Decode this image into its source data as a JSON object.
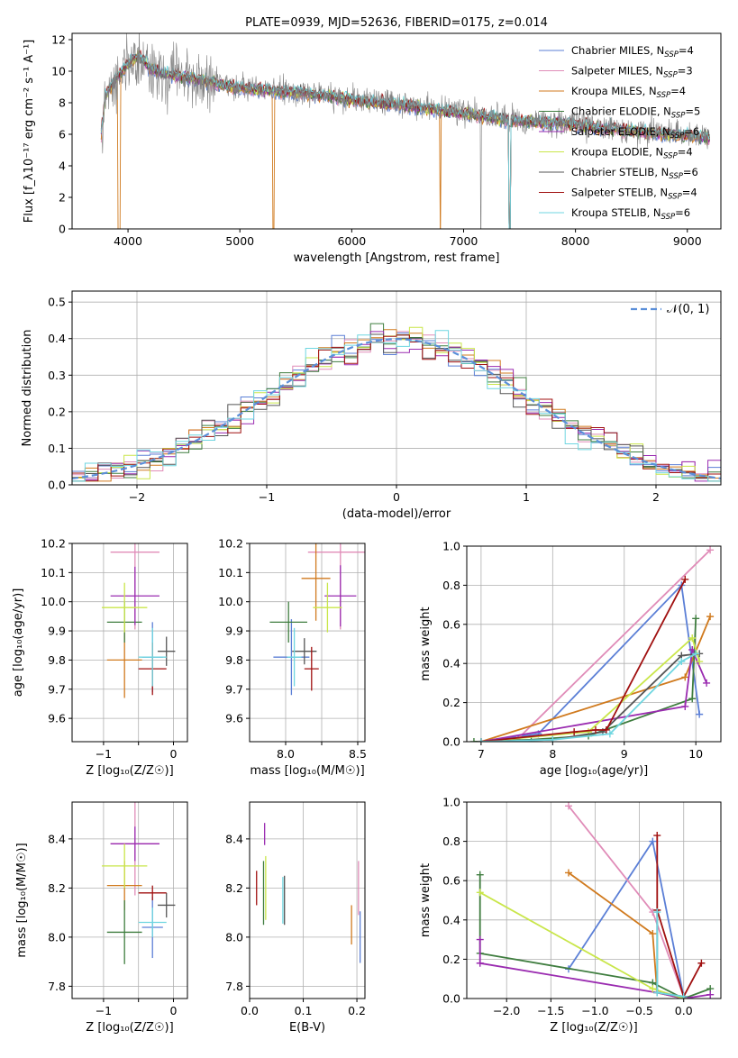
{
  "colors": {
    "Chabrier MILES": "#5b7fd6",
    "Salpeter MILES": "#e08cb8",
    "Kroupa MILES": "#d07a1e",
    "Chabrier ELODIE": "#3f7d3f",
    "Salpeter ELODIE": "#9a2bb0",
    "Kroupa ELODIE": "#c9e64a",
    "Chabrier STELIB": "#555555",
    "Salpeter STELIB": "#a01010",
    "Kroupa STELIB": "#6fd6e0"
  },
  "chart_data": [
    {
      "id": "spectrum",
      "type": "line",
      "title": "PLATE=0939, MJD=52636, FIBERID=0175, z=0.014",
      "xlabel": "wavelength [Angstrom, rest frame]",
      "ylabel": "Flux [f_λ10⁻¹⁷ erg cm⁻² s⁻¹ A⁻¹]",
      "xlim": [
        3500,
        9300
      ],
      "ylim": [
        0,
        12.4
      ],
      "xticks": [
        4000,
        5000,
        6000,
        7000,
        8000,
        9000
      ],
      "yticks": [
        0,
        2,
        4,
        6,
        8,
        10,
        12
      ],
      "grid": false,
      "legend_position": "upper-right",
      "legend": [
        {
          "model": "Chabrier MILES",
          "label": "Chabrier MILES, N",
          "sub": "SSP",
          "tail": "=4"
        },
        {
          "model": "Salpeter MILES",
          "label": "Salpeter MILES, N",
          "sub": "SSP",
          "tail": "=3"
        },
        {
          "model": "Kroupa MILES",
          "label": "Kroupa MILES, N",
          "sub": "SSP",
          "tail": "=4"
        },
        {
          "model": "Chabrier ELODIE",
          "label": "Chabrier ELODIE, N",
          "sub": "SSP",
          "tail": "=5"
        },
        {
          "model": "Salpeter ELODIE",
          "label": "Salpeter ELODIE, N",
          "sub": "SSP",
          "tail": "=6"
        },
        {
          "model": "Kroupa ELODIE",
          "label": "Kroupa ELODIE, N",
          "sub": "SSP",
          "tail": "=4"
        },
        {
          "model": "Chabrier STELIB",
          "label": "Chabrier STELIB, N",
          "sub": "SSP",
          "tail": "=6"
        },
        {
          "model": "Salpeter STELIB",
          "label": "Salpeter STELIB, N",
          "sub": "SSP",
          "tail": "=4"
        },
        {
          "model": "Kroupa STELIB",
          "label": "Kroupa STELIB, N",
          "sub": "SSP",
          "tail": "=6"
        }
      ],
      "data_x": [
        3760,
        3800,
        3900,
        4000,
        4100,
        4200,
        4300,
        4400,
        4500,
        4600,
        4700,
        4800,
        4900,
        5000,
        5200,
        5400,
        5600,
        5800,
        6000,
        6200,
        6400,
        6600,
        6800,
        7000,
        7200,
        7400,
        7600,
        7800,
        8000,
        8200,
        8400,
        8600,
        8800,
        9000,
        9200
      ],
      "data_y": [
        5.0,
        8.2,
        9.4,
        10.3,
        10.8,
        10.2,
        9.9,
        9.8,
        9.7,
        9.6,
        9.5,
        9.3,
        9.2,
        9.0,
        8.9,
        8.8,
        8.6,
        8.5,
        8.3,
        8.1,
        8.0,
        7.8,
        7.6,
        7.4,
        7.2,
        7.0,
        6.9,
        6.8,
        6.7,
        6.5,
        6.4,
        6.2,
        6.1,
        6.0,
        5.9
      ],
      "models_x": [
        3760,
        3800,
        3900,
        4000,
        4100,
        4200,
        4300,
        4400,
        4500,
        4600,
        4700,
        4800,
        4900,
        5000,
        5200,
        5400,
        5600,
        5800,
        6000,
        6200,
        6400,
        6600,
        6800,
        7000,
        7200,
        7400,
        7600,
        7800,
        8000,
        8200,
        8400,
        8600,
        8800,
        9000,
        9200
      ],
      "models_y": [
        6.0,
        8.5,
        9.6,
        10.5,
        11.0,
        10.2,
        9.9,
        9.8,
        9.6,
        9.5,
        9.4,
        9.2,
        9.0,
        8.9,
        8.8,
        8.7,
        8.6,
        8.4,
        8.2,
        8.0,
        7.9,
        7.7,
        7.5,
        7.3,
        7.1,
        6.9,
        6.8,
        6.7,
        6.6,
        6.4,
        6.3,
        6.1,
        6.0,
        5.9,
        5.8
      ]
    },
    {
      "id": "residuals",
      "type": "line",
      "xlabel": "(data-model)/error",
      "ylabel": "Normed distribution",
      "xlim": [
        -2.5,
        2.5
      ],
      "ylim": [
        0,
        0.53
      ],
      "xticks": [
        -2,
        -1,
        0,
        1,
        2
      ],
      "yticks": [
        0.0,
        0.1,
        0.2,
        0.3,
        0.4,
        0.5
      ],
      "grid": true,
      "legend_position": "upper-right",
      "legend": [
        {
          "label": "𝒩(0, 1)",
          "style": "dashed"
        }
      ],
      "normal_curve": {
        "mean": 0,
        "sigma": 1
      }
    },
    {
      "id": "age_vs_Z",
      "type": "scatter",
      "xlabel": "Z [log₁₀(Z/Z☉)]",
      "ylabel": "age  [log₁₀(age/yr)]",
      "xlim": [
        -1.45,
        0.2
      ],
      "ylim": [
        9.52,
        10.2
      ],
      "xticks": [
        -1,
        -0.5,
        0
      ],
      "xticklabels": [
        "−1",
        "",
        "0"
      ],
      "yticks": [
        9.6,
        9.7,
        9.8,
        9.9,
        10.0,
        10.1,
        10.2
      ],
      "grid": true,
      "points": [
        {
          "model": "Chabrier MILES",
          "x": -0.3,
          "xerr": 0.3,
          "y": 9.81,
          "yerr": 0.24
        },
        {
          "model": "Salpeter MILES",
          "x": -0.55,
          "xerr": 0.7,
          "y": 10.17,
          "yerr": 0.53
        },
        {
          "model": "Kroupa MILES",
          "x": -0.7,
          "xerr": 0.5,
          "y": 9.8,
          "yerr": 0.26
        },
        {
          "model": "Chabrier ELODIE",
          "x": -0.7,
          "xerr": 0.5,
          "y": 9.93,
          "yerr": 0.14
        },
        {
          "model": "Salpeter ELODIE",
          "x": -0.55,
          "xerr": 0.7,
          "y": 10.02,
          "yerr": 0.2
        },
        {
          "model": "Kroupa ELODIE",
          "x": -0.7,
          "xerr": 0.65,
          "y": 9.98,
          "yerr": 0.17
        },
        {
          "model": "Chabrier STELIB",
          "x": -0.1,
          "xerr": 0.25,
          "y": 9.83,
          "yerr": 0.1
        },
        {
          "model": "Salpeter STELIB",
          "x": -0.3,
          "xerr": 0.4,
          "y": 9.77,
          "yerr": 0.18
        },
        {
          "model": "Kroupa STELIB",
          "x": -0.3,
          "xerr": 0.4,
          "y": 9.81,
          "yerr": 0.2
        }
      ]
    },
    {
      "id": "age_vs_mass",
      "type": "scatter",
      "xlabel": "mass [log₁₀(M/M☉)]",
      "ylabel": "",
      "xlim": [
        7.75,
        8.55
      ],
      "ylim": [
        9.52,
        10.2
      ],
      "xticks": [
        8.0,
        8.25,
        8.5
      ],
      "xticklabels": [
        "8.0",
        "",
        "8.5"
      ],
      "yticks": [
        9.6,
        9.7,
        9.8,
        9.9,
        10.0,
        10.1,
        10.2
      ],
      "grid": true,
      "points": [
        {
          "model": "Chabrier MILES",
          "x": 8.04,
          "xerr": 0.25,
          "y": 9.81,
          "yerr": 0.26
        },
        {
          "model": "Salpeter MILES",
          "x": 8.38,
          "xerr": 0.45,
          "y": 10.17,
          "yerr": 0.53
        },
        {
          "model": "Kroupa MILES",
          "x": 8.21,
          "xerr": 0.2,
          "y": 10.08,
          "yerr": 0.29
        },
        {
          "model": "Chabrier ELODIE",
          "x": 8.02,
          "xerr": 0.26,
          "y": 9.93,
          "yerr": 0.14
        },
        {
          "model": "Salpeter ELODIE",
          "x": 8.38,
          "xerr": 0.22,
          "y": 10.02,
          "yerr": 0.21
        },
        {
          "model": "Kroupa ELODIE",
          "x": 8.29,
          "xerr": 0.2,
          "y": 9.98,
          "yerr": 0.17
        },
        {
          "model": "Chabrier STELIB",
          "x": 8.13,
          "xerr": 0.17,
          "y": 9.83,
          "yerr": 0.09
        },
        {
          "model": "Salpeter STELIB",
          "x": 8.18,
          "xerr": 0.1,
          "y": 9.77,
          "yerr": 0.15
        },
        {
          "model": "Kroupa STELIB",
          "x": 8.06,
          "xerr": 0.1,
          "y": 9.81,
          "yerr": 0.2
        }
      ]
    },
    {
      "id": "massweight_vs_age",
      "type": "line",
      "xlabel": "age  [log₁₀(age/yr)]",
      "ylabel": "mass weight",
      "xlim": [
        6.8,
        10.35
      ],
      "ylim": [
        0,
        1.0
      ],
      "xticks": [
        7,
        8,
        9,
        10
      ],
      "yticks": [
        0.0,
        0.2,
        0.4,
        0.6,
        0.8,
        1.0
      ],
      "grid": true,
      "series": [
        {
          "model": "Chabrier MILES",
          "x": [
            7.0,
            7.8,
            9.8,
            10.05
          ],
          "y": [
            0.0,
            0.04,
            0.8,
            0.14
          ]
        },
        {
          "model": "Salpeter MILES",
          "x": [
            7.5,
            10.2
          ],
          "y": [
            0.01,
            0.98
          ]
        },
        {
          "model": "Kroupa MILES",
          "x": [
            7.0,
            9.85,
            10.2
          ],
          "y": [
            0.0,
            0.33,
            0.64
          ]
        },
        {
          "model": "Chabrier ELODIE",
          "x": [
            6.9,
            7.7,
            8.5,
            9.95,
            10.0
          ],
          "y": [
            0.0,
            0.01,
            0.03,
            0.22,
            0.63
          ]
        },
        {
          "model": "Salpeter ELODIE",
          "x": [
            7.0,
            9.85,
            9.95,
            10.15
          ],
          "y": [
            0.0,
            0.18,
            0.47,
            0.3
          ]
        },
        {
          "model": "Kroupa ELODIE",
          "x": [
            7.0,
            8.5,
            9.95,
            10.05
          ],
          "y": [
            0.0,
            0.05,
            0.53,
            0.41
          ]
        },
        {
          "model": "Chabrier STELIB",
          "x": [
            7.0,
            8.0,
            8.7,
            9.8,
            10.05
          ],
          "y": [
            0.0,
            0.01,
            0.05,
            0.44,
            0.45
          ]
        },
        {
          "model": "Salpeter STELIB",
          "x": [
            7.0,
            8.3,
            8.6,
            8.75,
            9.85
          ],
          "y": [
            0.0,
            0.05,
            0.06,
            0.06,
            0.83
          ]
        },
        {
          "model": "Kroupa STELIB",
          "x": [
            7.0,
            8.0,
            8.8,
            9.8,
            10.0
          ],
          "y": [
            0.0,
            0.01,
            0.04,
            0.41,
            0.45
          ]
        }
      ]
    },
    {
      "id": "mass_vs_Z",
      "type": "scatter",
      "xlabel": "Z [log₁₀(Z/Z☉)]",
      "ylabel": "mass [log₁₀(M/M☉)]",
      "xlim": [
        -1.45,
        0.2
      ],
      "ylim": [
        7.75,
        8.55
      ],
      "xticks": [
        -1,
        -0.5,
        0
      ],
      "xticklabels": [
        "−1",
        "",
        "0"
      ],
      "yticks": [
        7.8,
        8.0,
        8.2,
        8.4
      ],
      "grid": true,
      "points": [
        {
          "model": "Chabrier MILES",
          "x": -0.3,
          "xerr": 0.3,
          "y": 8.04,
          "yerr": 0.25
        },
        {
          "model": "Salpeter MILES",
          "x": -0.55,
          "xerr": 0.7,
          "y": 8.38,
          "yerr": 0.42
        },
        {
          "model": "Kroupa MILES",
          "x": -0.7,
          "xerr": 0.5,
          "y": 8.21,
          "yerr": 0.2
        },
        {
          "model": "Chabrier ELODIE",
          "x": -0.7,
          "xerr": 0.5,
          "y": 8.02,
          "yerr": 0.26
        },
        {
          "model": "Salpeter ELODIE",
          "x": -0.55,
          "xerr": 0.7,
          "y": 8.38,
          "yerr": 0.14
        },
        {
          "model": "Kroupa ELODIE",
          "x": -0.7,
          "xerr": 0.65,
          "y": 8.29,
          "yerr": 0.18
        },
        {
          "model": "Chabrier STELIB",
          "x": -0.1,
          "xerr": 0.25,
          "y": 8.13,
          "yerr": 0.1
        },
        {
          "model": "Salpeter STELIB",
          "x": -0.3,
          "xerr": 0.4,
          "y": 8.18,
          "yerr": 0.06
        },
        {
          "model": "Kroupa STELIB",
          "x": -0.3,
          "xerr": 0.4,
          "y": 8.06,
          "yerr": 0.12
        }
      ]
    },
    {
      "id": "mass_vs_EBV",
      "type": "scatter",
      "xlabel": "E(B-V)",
      "ylabel": "",
      "xlim": [
        0,
        0.215
      ],
      "ylim": [
        7.75,
        8.55
      ],
      "xticks": [
        0.0,
        0.1,
        0.2
      ],
      "yticks": [
        7.8,
        8.0,
        8.2,
        8.4
      ],
      "grid": true,
      "points": [
        {
          "model": "Chabrier MILES",
          "x": 0.206,
          "y": 8.0,
          "yerr": 0.21
        },
        {
          "model": "Salpeter MILES",
          "x": 0.203,
          "y": 8.2,
          "yerr": 0.22
        },
        {
          "model": "Kroupa MILES",
          "x": 0.19,
          "y": 8.05,
          "yerr": 0.16
        },
        {
          "model": "Chabrier ELODIE",
          "x": 0.026,
          "y": 8.18,
          "yerr": 0.26
        },
        {
          "model": "Salpeter ELODIE",
          "x": 0.028,
          "y": 8.42,
          "yerr": 0.09
        },
        {
          "model": "Kroupa ELODIE",
          "x": 0.03,
          "y": 8.2,
          "yerr": 0.26
        },
        {
          "model": "Chabrier STELIB",
          "x": 0.065,
          "y": 8.15,
          "yerr": 0.2
        },
        {
          "model": "Salpeter STELIB",
          "x": 0.013,
          "y": 8.2,
          "yerr": 0.14
        },
        {
          "model": "Kroupa STELIB",
          "x": 0.062,
          "y": 8.15,
          "yerr": 0.19
        }
      ]
    },
    {
      "id": "massweight_vs_Z",
      "type": "line",
      "xlabel": "Z [log₁₀(Z/Z☉)]",
      "ylabel": "mass weight",
      "xlim": [
        -2.45,
        0.42
      ],
      "ylim": [
        0,
        1.0
      ],
      "xticks": [
        -2.0,
        -1.5,
        -1.0,
        -0.5,
        0.0
      ],
      "yticks": [
        0.0,
        0.2,
        0.4,
        0.6,
        0.8,
        1.0
      ],
      "grid": true,
      "series": [
        {
          "model": "Chabrier MILES",
          "x": [
            -1.3,
            -0.35,
            0.0
          ],
          "y": [
            0.15,
            0.8,
            0.01
          ]
        },
        {
          "model": "Salpeter MILES",
          "x": [
            -1.3,
            -0.35,
            0.0
          ],
          "y": [
            0.98,
            0.44,
            0.01
          ]
        },
        {
          "model": "Kroupa MILES",
          "x": [
            -1.3,
            -0.35,
            -0.3,
            0.0
          ],
          "y": [
            0.64,
            0.33,
            0.03,
            0.0
          ]
        },
        {
          "model": "Chabrier ELODIE",
          "x": [
            -2.3,
            -2.3,
            -0.35,
            0.0,
            0.3
          ],
          "y": [
            0.63,
            0.23,
            0.08,
            0.0,
            0.05
          ]
        },
        {
          "model": "Salpeter ELODIE",
          "x": [
            -2.3,
            -2.3,
            -0.3,
            0.0,
            0.3
          ],
          "y": [
            0.3,
            0.18,
            0.03,
            0.0,
            0.02
          ]
        },
        {
          "model": "Kroupa ELODIE",
          "x": [
            -2.3,
            -0.35,
            0.0
          ],
          "y": [
            0.54,
            0.05,
            0.0
          ]
        },
        {
          "model": "Chabrier STELIB",
          "x": [
            -0.3,
            -0.3,
            0.0
          ],
          "y": [
            0.45,
            0.03,
            0.01
          ]
        },
        {
          "model": "Salpeter STELIB",
          "x": [
            -0.3,
            -0.3,
            0.0,
            0.2
          ],
          "y": [
            0.83,
            0.45,
            0.01,
            0.18
          ]
        },
        {
          "model": "Kroupa STELIB",
          "x": [
            -0.3,
            -0.3,
            0.0
          ],
          "y": [
            0.44,
            0.03,
            0.01
          ]
        }
      ]
    }
  ]
}
